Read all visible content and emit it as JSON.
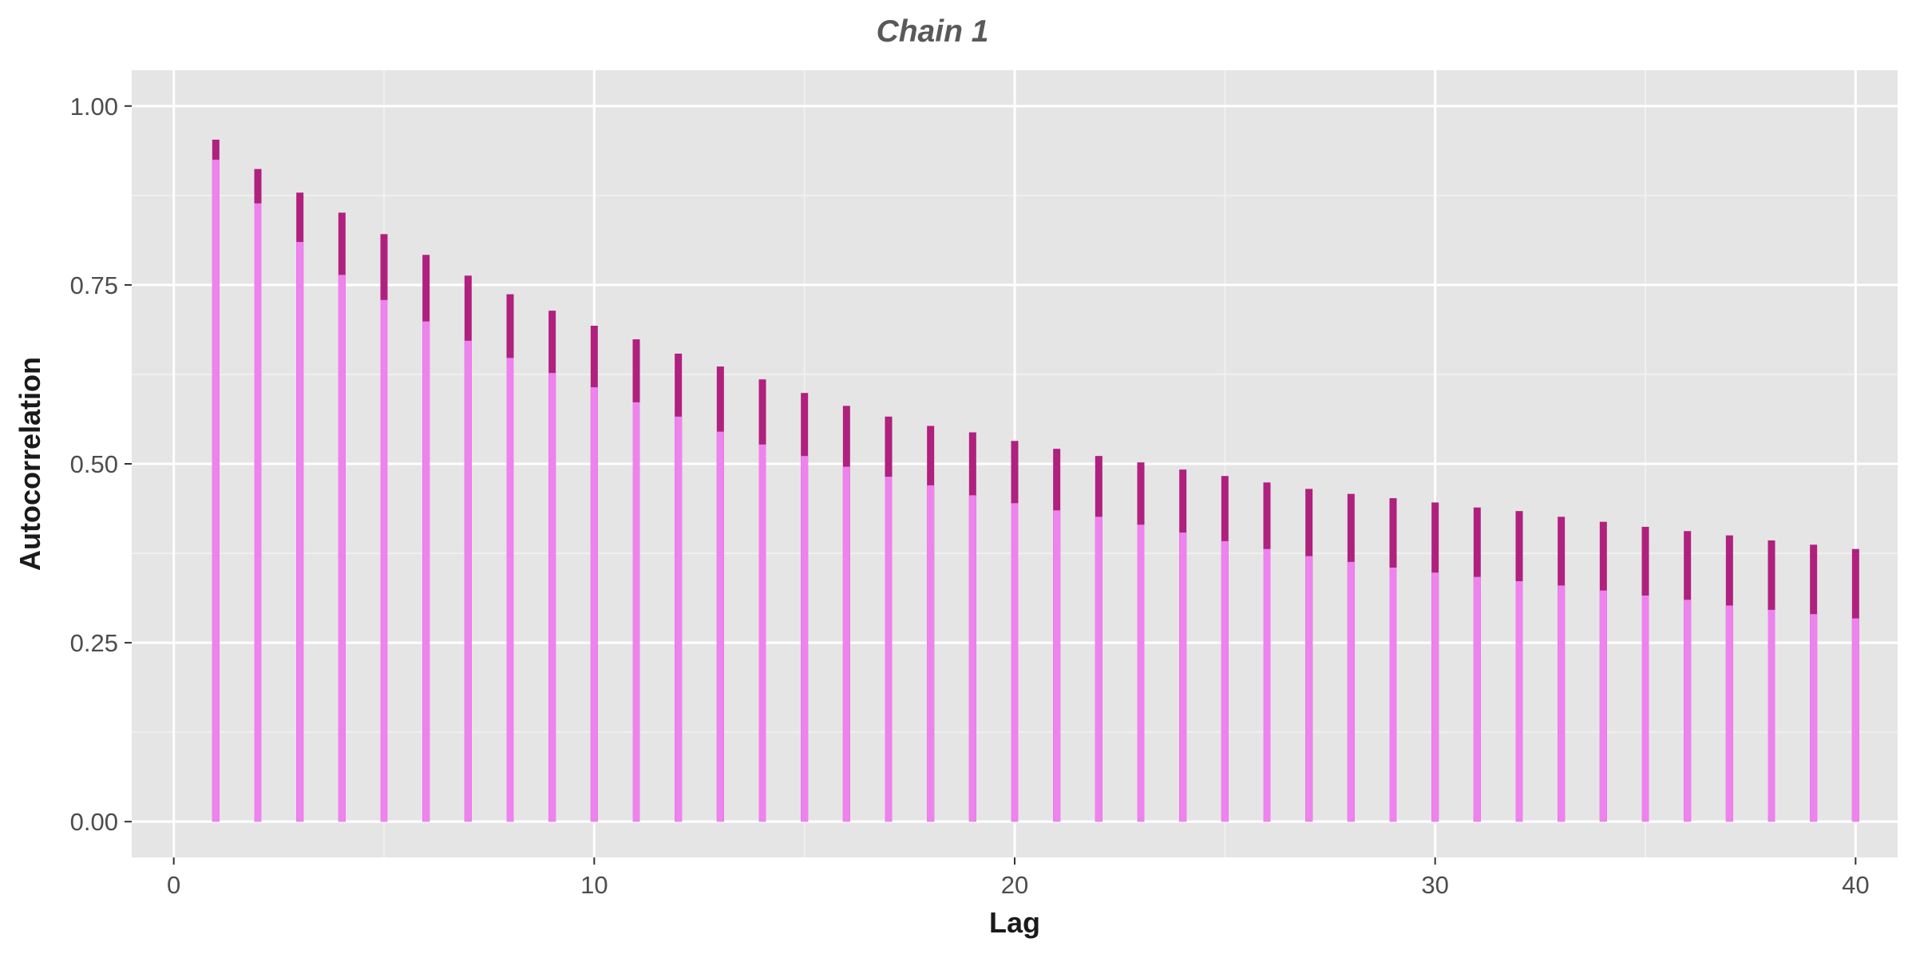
{
  "chart_data": {
    "type": "bar",
    "title": "Chain 1",
    "xlabel": "Lag",
    "ylabel": "Autocorrelation",
    "xlim": [
      -1,
      41
    ],
    "ylim": [
      -0.05,
      1.05
    ],
    "x_ticks": [
      0,
      10,
      20,
      30,
      40
    ],
    "x_tick_labels": [
      "0",
      "10",
      "20",
      "30",
      "40"
    ],
    "y_ticks": [
      0,
      0.25,
      0.5,
      0.75,
      1.0
    ],
    "y_tick_labels": [
      "0.00",
      "0.25",
      "0.50",
      "0.75",
      "1.00"
    ],
    "grid": true,
    "legend": "none",
    "background": "#e5e5e5",
    "colors": {
      "dark": "#b0207e",
      "light": "#ee82ee"
    },
    "x": [
      1,
      2,
      3,
      4,
      5,
      6,
      7,
      8,
      9,
      10,
      11,
      12,
      13,
      14,
      15,
      16,
      17,
      18,
      19,
      20,
      21,
      22,
      23,
      24,
      25,
      26,
      27,
      28,
      29,
      30,
      31,
      32,
      33,
      34,
      35,
      36,
      37,
      38,
      39,
      40
    ],
    "series": [
      {
        "values": [
          0.953,
          0.912,
          0.879,
          0.851,
          0.821,
          0.792,
          0.763,
          0.737,
          0.714,
          0.693,
          0.674,
          0.654,
          0.636,
          0.618,
          0.599,
          0.581,
          0.566,
          0.553,
          0.544,
          0.532,
          0.521,
          0.511,
          0.502,
          0.492,
          0.483,
          0.474,
          0.465,
          0.458,
          0.452,
          0.446,
          0.439,
          0.434,
          0.426,
          0.419,
          0.412,
          0.406,
          0.4,
          0.393,
          0.387,
          0.381
        ]
      },
      {
        "values": [
          0.925,
          0.864,
          0.81,
          0.764,
          0.729,
          0.699,
          0.672,
          0.648,
          0.627,
          0.607,
          0.586,
          0.566,
          0.545,
          0.527,
          0.511,
          0.496,
          0.482,
          0.47,
          0.456,
          0.445,
          0.435,
          0.426,
          0.415,
          0.404,
          0.392,
          0.381,
          0.371,
          0.363,
          0.355,
          0.348,
          0.342,
          0.336,
          0.33,
          0.323,
          0.316,
          0.31,
          0.302,
          0.296,
          0.29,
          0.284
        ]
      }
    ]
  }
}
